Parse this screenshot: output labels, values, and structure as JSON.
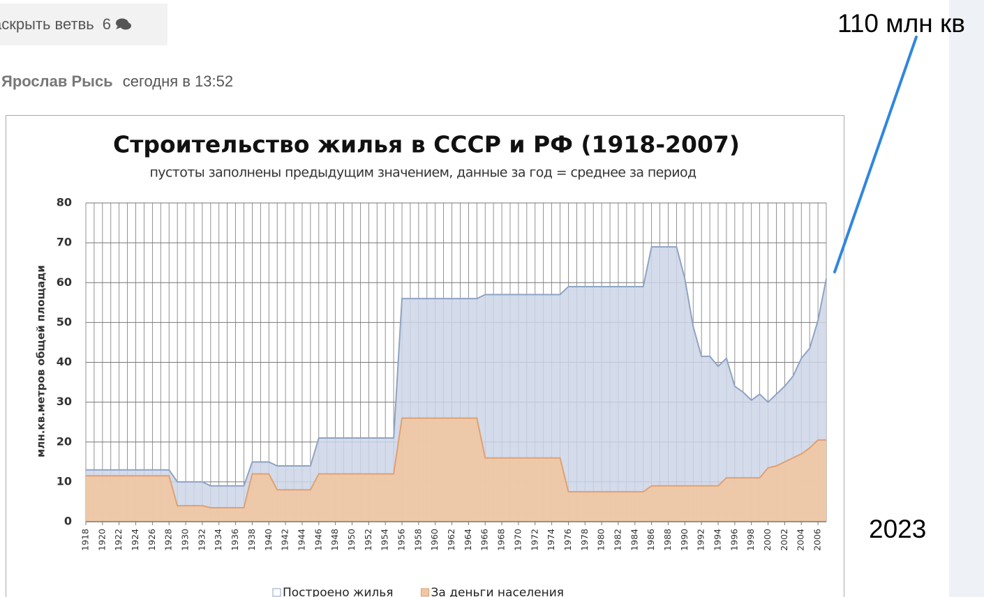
{
  "ui": {
    "expand_button": {
      "label": "аскрыть ветвь",
      "count": 6
    },
    "author": "Ярослав Рысь",
    "time": "сегодня в 13:52",
    "annotation_note": "110 млн кв",
    "annotation_year": "2023"
  },
  "chart_data": {
    "type": "area",
    "title": "Строительство жилья в СССР и РФ (1918-2007)",
    "subtitle": "пустоты заполнены предыдущим значением, данные за год = среднее за период",
    "y_label": "млн.кв.метров общей площади",
    "x": [
      1918,
      1919,
      1920,
      1921,
      1922,
      1923,
      1924,
      1925,
      1926,
      1927,
      1928,
      1929,
      1930,
      1931,
      1932,
      1933,
      1934,
      1935,
      1936,
      1937,
      1938,
      1939,
      1940,
      1941,
      1942,
      1943,
      1944,
      1945,
      1946,
      1947,
      1948,
      1949,
      1950,
      1951,
      1952,
      1953,
      1954,
      1955,
      1956,
      1957,
      1958,
      1959,
      1960,
      1961,
      1962,
      1963,
      1964,
      1965,
      1966,
      1967,
      1968,
      1969,
      1970,
      1971,
      1972,
      1973,
      1974,
      1975,
      1976,
      1977,
      1978,
      1979,
      1980,
      1981,
      1982,
      1983,
      1984,
      1985,
      1986,
      1987,
      1988,
      1989,
      1990,
      1991,
      1992,
      1993,
      1994,
      1995,
      1996,
      1997,
      1998,
      1999,
      2000,
      2001,
      2002,
      2003,
      2004,
      2005,
      2006,
      2007
    ],
    "series": [
      {
        "name": "Построено жилья",
        "color": "#8ea3c4",
        "fill": "#cdd5e6",
        "values": [
          13,
          13,
          13,
          13,
          13,
          13,
          13,
          13,
          13,
          13,
          13,
          10,
          10,
          10,
          10,
          9,
          9,
          9,
          9,
          9,
          15,
          15,
          15,
          14,
          14,
          14,
          14,
          14,
          21,
          21,
          21,
          21,
          21,
          21,
          21,
          21,
          21,
          21,
          56,
          56,
          56,
          56,
          56,
          56,
          56,
          56,
          56,
          56,
          57,
          57,
          57,
          57,
          57,
          57,
          57,
          57,
          57,
          57,
          59,
          59,
          59,
          59,
          59,
          59,
          59,
          59,
          59,
          59,
          69,
          69,
          69,
          69,
          61,
          49,
          41.5,
          41.5,
          39,
          41,
          34,
          32.5,
          30.5,
          32,
          30,
          32,
          34,
          36.5,
          41,
          43.5,
          50.5,
          61
        ]
      },
      {
        "name": "За деньги населения",
        "color": "#e0a070",
        "fill": "#f1c6a2",
        "values": [
          11.5,
          11.5,
          11.5,
          11.5,
          11.5,
          11.5,
          11.5,
          11.5,
          11.5,
          11.5,
          11.5,
          4,
          4,
          4,
          4,
          3.5,
          3.5,
          3.5,
          3.5,
          3.5,
          12,
          12,
          12,
          8,
          8,
          8,
          8,
          8,
          12,
          12,
          12,
          12,
          12,
          12,
          12,
          12,
          12,
          12,
          26,
          26,
          26,
          26,
          26,
          26,
          26,
          26,
          26,
          26,
          16,
          16,
          16,
          16,
          16,
          16,
          16,
          16,
          16,
          16,
          7.5,
          7.5,
          7.5,
          7.5,
          7.5,
          7.5,
          7.5,
          7.5,
          7.5,
          7.5,
          9,
          9,
          9,
          9,
          9,
          9,
          9,
          9,
          9,
          11,
          11,
          11,
          11,
          11,
          13.5,
          14,
          15,
          16,
          17,
          18.5,
          20.5,
          20.5
        ]
      }
    ],
    "xlim": [
      1918,
      2007
    ],
    "xticks": [
      1918,
      1920,
      1922,
      1924,
      1926,
      1928,
      1930,
      1932,
      1934,
      1936,
      1938,
      1940,
      1942,
      1944,
      1946,
      1948,
      1950,
      1952,
      1954,
      1956,
      1958,
      1960,
      1962,
      1964,
      1966,
      1968,
      1970,
      1972,
      1974,
      1976,
      1978,
      1980,
      1982,
      1984,
      1986,
      1988,
      1990,
      1992,
      1994,
      1996,
      1998,
      2000,
      2002,
      2004,
      2006
    ],
    "ylim": [
      0,
      80
    ],
    "yticks": [
      0,
      10,
      20,
      30,
      40,
      50,
      60,
      70,
      80
    ],
    "grid": true,
    "legend": "bottom"
  }
}
